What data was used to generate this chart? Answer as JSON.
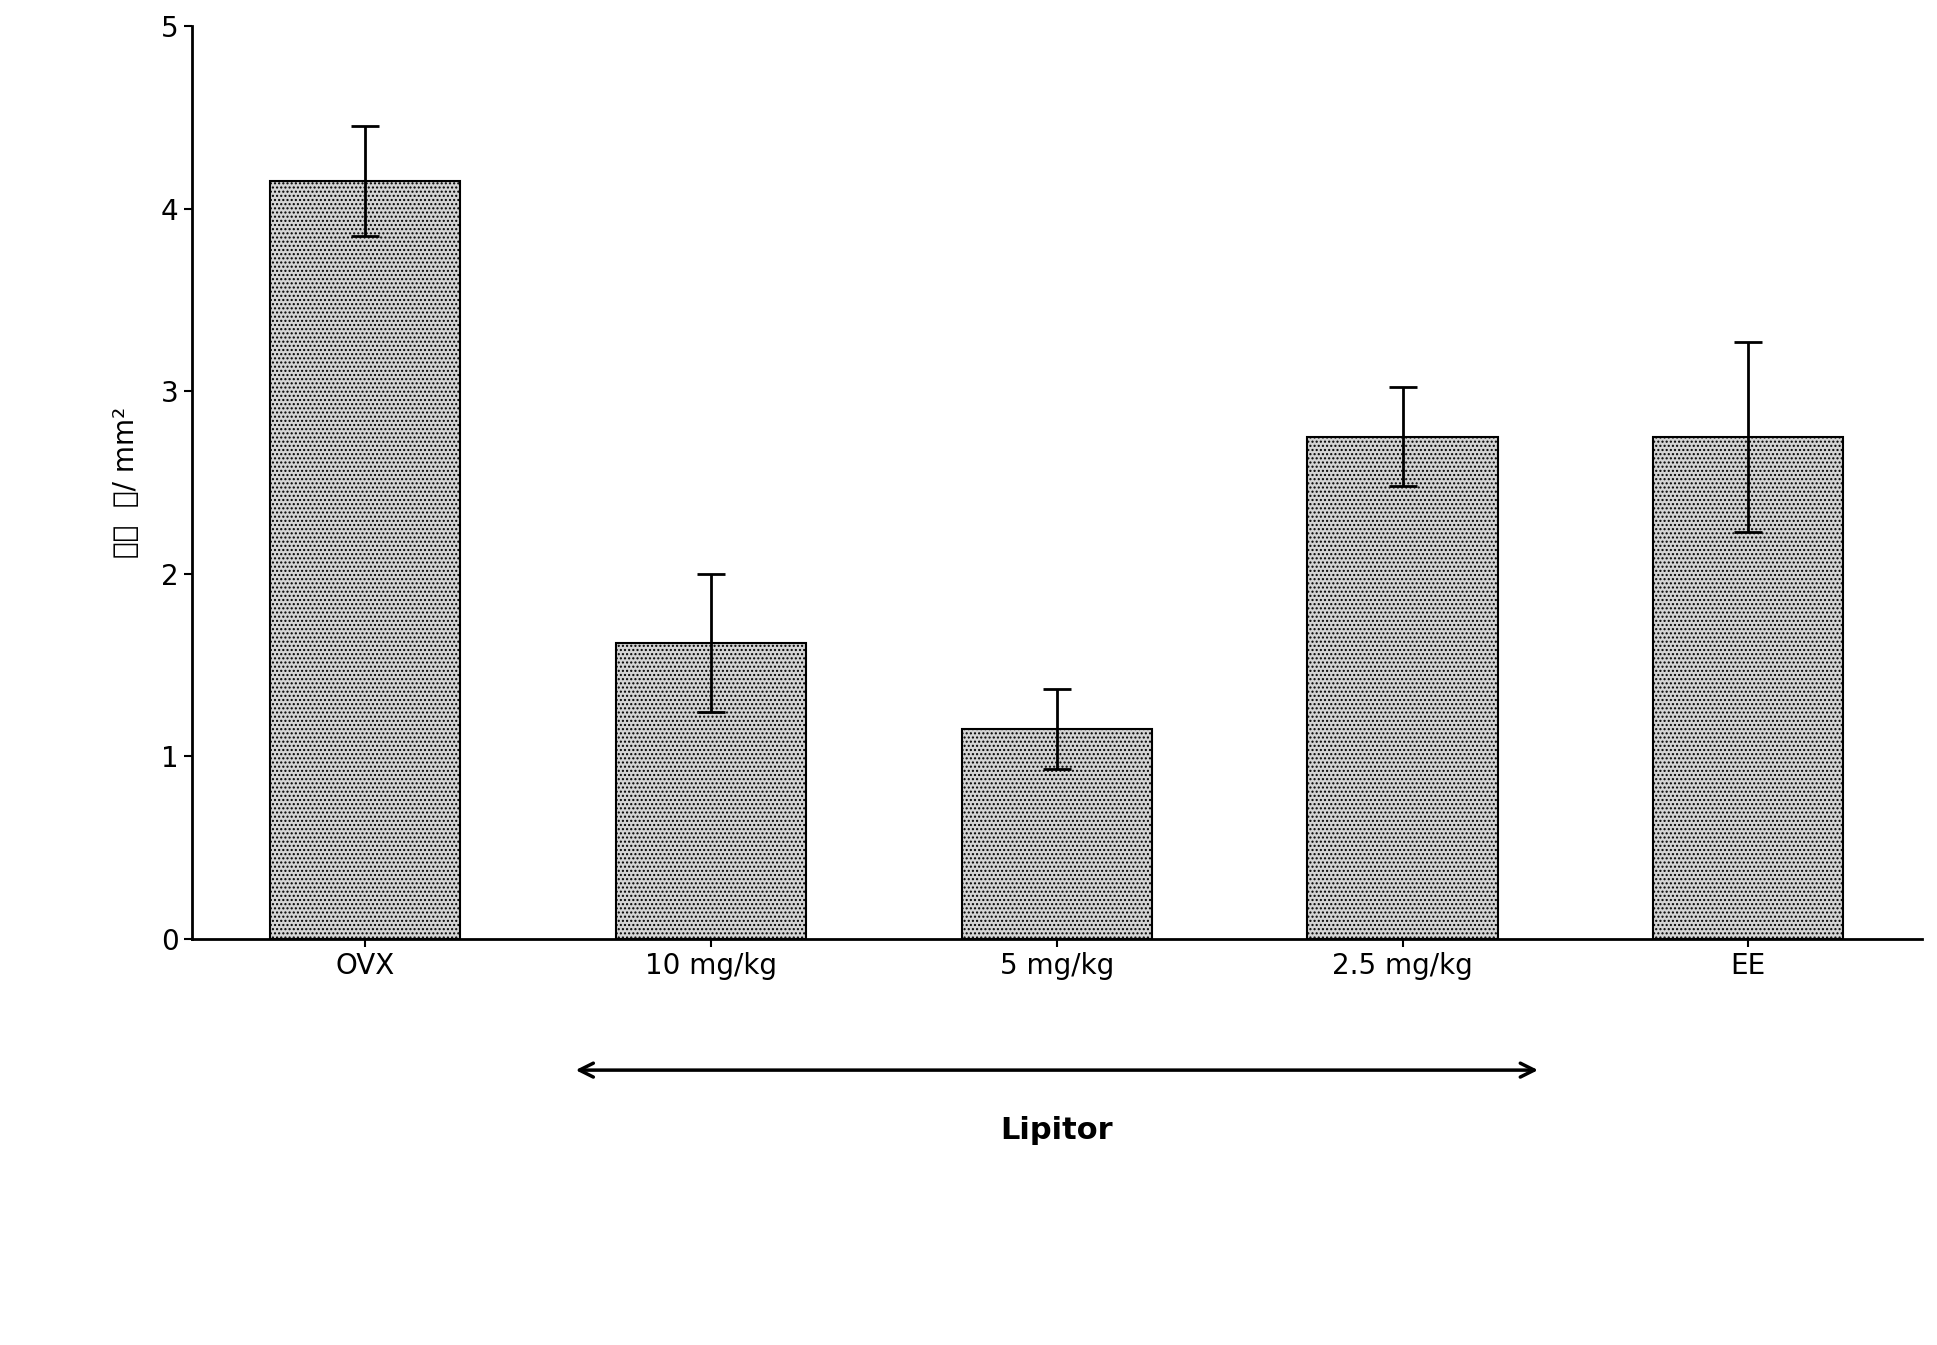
{
  "categories": [
    "OVX",
    "10 mg/kg",
    "5 mg/kg",
    "2.5 mg/kg",
    "EE"
  ],
  "values": [
    4.15,
    1.62,
    1.15,
    2.75,
    2.75
  ],
  "errors": [
    0.3,
    0.38,
    0.22,
    0.27,
    0.52
  ],
  "ylabel_line1": "细胞",
  "ylabel_line2": "数/ mm²",
  "ylim": [
    0,
    5
  ],
  "yticks": [
    0,
    1,
    2,
    3,
    4,
    5
  ],
  "bar_color": "#d4d4d4",
  "bar_hatch": "....",
  "bar_edgecolor": "#000000",
  "lipitor_label": "Lipitor",
  "background_color": "#ffffff",
  "figsize": [
    19.37,
    13.45
  ],
  "dpi": 100,
  "bar_width": 0.55,
  "spine_linewidth": 2.0,
  "tick_fontsize": 20,
  "label_fontsize": 20,
  "arrow_fontsize": 22
}
